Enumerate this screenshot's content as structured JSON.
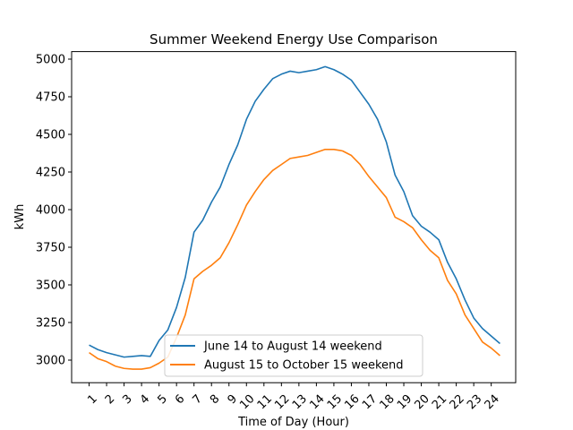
{
  "chart_data": {
    "type": "line",
    "title": "Summer Weekend Energy Use Comparison",
    "xlabel": "Time of Day (Hour)",
    "ylabel": "kWh",
    "x_ticks": [
      "1",
      "2",
      "3",
      "4",
      "5",
      "6",
      "7",
      "8",
      "9",
      "10",
      "11",
      "12",
      "13",
      "14",
      "15",
      "16",
      "17",
      "18",
      "19",
      "20",
      "21",
      "22",
      "23",
      "24"
    ],
    "y_ticks": [
      3000,
      3250,
      3500,
      3750,
      4000,
      4250,
      4500,
      4750,
      5000
    ],
    "xlim": [
      0.0,
      25.4
    ],
    "ylim": [
      2850,
      5050
    ],
    "grid": false,
    "legend_position": "lower center",
    "series": [
      {
        "name": "June 14 to August 14 weekend",
        "color": "#1f77b4",
        "x": [
          1,
          1.5,
          2,
          2.5,
          3,
          3.5,
          4,
          4.5,
          5,
          5.5,
          6,
          6.5,
          7,
          7.5,
          8,
          8.5,
          9,
          9.5,
          10,
          10.5,
          11,
          11.5,
          12,
          12.5,
          13,
          13.5,
          14,
          14.5,
          15,
          15.5,
          16,
          16.5,
          17,
          17.5,
          18,
          18.5,
          19,
          19.5,
          20,
          20.5,
          21,
          21.5,
          22,
          22.5,
          23,
          23.5,
          24,
          24.5
        ],
        "values": [
          3100,
          3070,
          3050,
          3035,
          3020,
          3025,
          3030,
          3025,
          3130,
          3200,
          3350,
          3550,
          3850,
          3930,
          4050,
          4150,
          4300,
          4430,
          4600,
          4720,
          4800,
          4870,
          4900,
          4920,
          4910,
          4920,
          4930,
          4950,
          4930,
          4900,
          4860,
          4780,
          4700,
          4600,
          4450,
          4230,
          4120,
          3960,
          3890,
          3850,
          3800,
          3650,
          3540,
          3400,
          3280,
          3210,
          3160,
          3110
        ]
      },
      {
        "name": "August 15 to October 15 weekend",
        "color": "#ff7f0e",
        "x": [
          1,
          1.5,
          2,
          2.5,
          3,
          3.5,
          4,
          4.5,
          5,
          5.5,
          6,
          6.5,
          7,
          7.5,
          8,
          8.5,
          9,
          9.5,
          10,
          10.5,
          11,
          11.5,
          12,
          12.5,
          13,
          13.5,
          14,
          14.5,
          15,
          15.5,
          16,
          16.5,
          17,
          17.5,
          18,
          18.5,
          19,
          19.5,
          20,
          20.5,
          21,
          21.5,
          22,
          22.5,
          23,
          23.5,
          24,
          24.5
        ],
        "values": [
          3050,
          3010,
          2990,
          2960,
          2945,
          2940,
          2940,
          2950,
          2980,
          3020,
          3150,
          3300,
          3540,
          3590,
          3630,
          3680,
          3780,
          3900,
          4030,
          4120,
          4200,
          4260,
          4300,
          4340,
          4350,
          4360,
          4380,
          4400,
          4400,
          4390,
          4360,
          4300,
          4220,
          4150,
          4080,
          3950,
          3920,
          3880,
          3800,
          3730,
          3680,
          3530,
          3440,
          3300,
          3210,
          3120,
          3080,
          3030
        ]
      }
    ]
  }
}
